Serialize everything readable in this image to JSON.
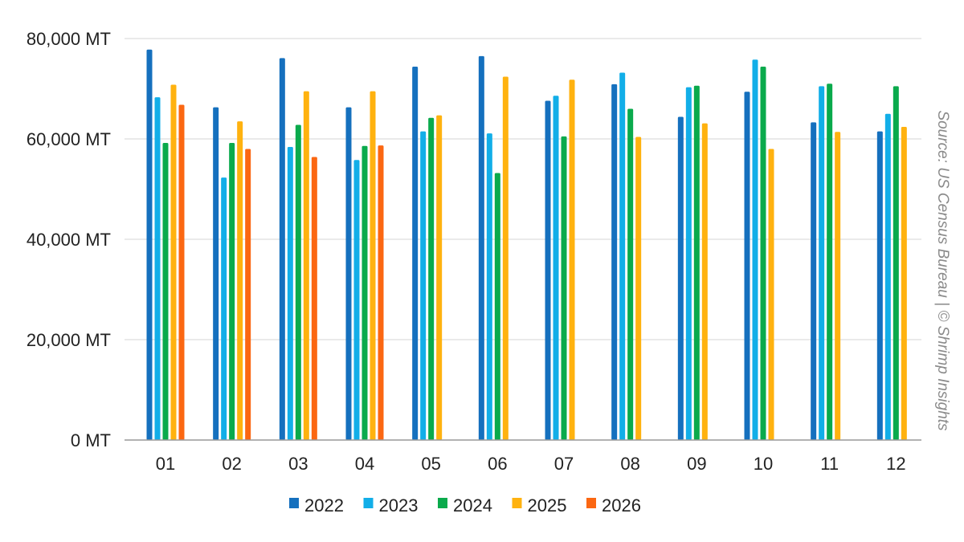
{
  "chart_data": {
    "type": "bar",
    "categories": [
      "01",
      "02",
      "03",
      "04",
      "05",
      "06",
      "07",
      "08",
      "09",
      "10",
      "11",
      "12"
    ],
    "series": [
      {
        "name": "2022",
        "color": "#1570be",
        "values": [
          77800,
          66300,
          76100,
          66300,
          74400,
          76500,
          67600,
          70900,
          64400,
          69400,
          63300,
          61500
        ]
      },
      {
        "name": "2023",
        "color": "#12aee8",
        "values": [
          68300,
          52300,
          58400,
          55800,
          61500,
          61100,
          68600,
          73200,
          70300,
          75800,
          70500,
          65000
        ]
      },
      {
        "name": "2024",
        "color": "#0aaa4c",
        "values": [
          59200,
          59200,
          62800,
          58600,
          64200,
          53200,
          60500,
          66000,
          70600,
          74400,
          71000,
          70500
        ]
      },
      {
        "name": "2025",
        "color": "#ffb20f",
        "values": [
          70800,
          63500,
          69500,
          69500,
          64700,
          72400,
          71800,
          60400,
          63100,
          58000,
          61400,
          62400
        ]
      },
      {
        "name": "2026",
        "color": "#fb6712",
        "values": [
          66800,
          58000,
          56400,
          58700,
          null,
          null,
          null,
          null,
          null,
          null,
          null,
          null
        ]
      }
    ],
    "ylim": [
      0,
      80000
    ],
    "yticks": [
      0,
      20000,
      40000,
      60000,
      80000
    ],
    "ytick_labels": [
      "0 MT",
      "20,000 MT",
      "40,000 MT",
      "60,000 MT",
      "80,000 MT"
    ],
    "grid": true,
    "legend_position": "bottom-center",
    "source_note": "Source: US Census Bureau | © Shrimp Insights"
  }
}
